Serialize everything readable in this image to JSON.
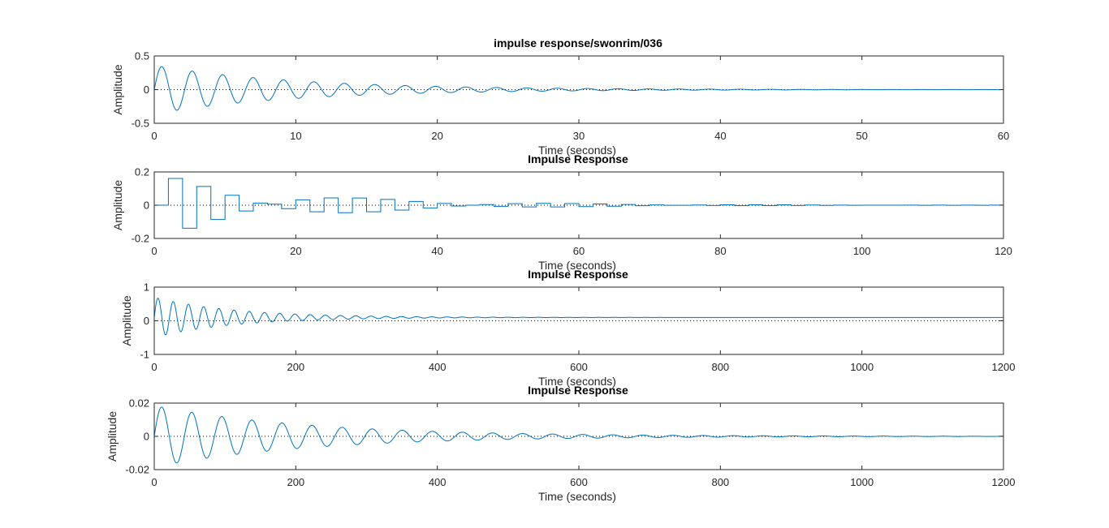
{
  "colors": {
    "line": "#0072BD",
    "axis": "#262626",
    "zero": "#000000"
  },
  "chart_data": [
    {
      "type": "line",
      "title": "impulse response/swonrim/036",
      "xlabel": "Time (seconds)",
      "ylabel": "Amplitude",
      "xlim": [
        0,
        60
      ],
      "ylim": [
        -0.5,
        0.5
      ],
      "xticks": [
        0,
        10,
        20,
        30,
        40,
        50,
        60
      ],
      "xtick_labels": [
        "0",
        "10",
        "20",
        "30",
        "40",
        "50",
        "60"
      ],
      "yticks": [
        -0.5,
        0,
        0.5
      ],
      "ytick_labels": [
        "-0.5",
        "0",
        "0.5"
      ],
      "grid": false,
      "zero_line": "dotted",
      "series": [
        {
          "style": "continuous",
          "amplitude": 0.36,
          "decay": 0.1,
          "period": 2.15,
          "offset": 0,
          "t_end": 60
        }
      ]
    },
    {
      "type": "line",
      "title": "Impulse Response",
      "xlabel": "Time (seconds)",
      "ylabel": "Amplitude",
      "xlim": [
        0,
        120
      ],
      "ylim": [
        -0.2,
        0.2
      ],
      "xticks": [
        0,
        20,
        40,
        60,
        80,
        100,
        120
      ],
      "xtick_labels": [
        "0",
        "20",
        "40",
        "60",
        "80",
        "100",
        "120"
      ],
      "yticks": [
        -0.2,
        0,
        0.2
      ],
      "ytick_labels": [
        "-0.2",
        "0",
        "0.2"
      ],
      "grid": false,
      "zero_line": "dotted",
      "series": [
        {
          "style": "stairs",
          "sample_time": 2,
          "delay": 2,
          "amplitude": 0.17,
          "decay": 0.05,
          "period": 4.3,
          "offset": 0,
          "t_end": 120
        }
      ]
    },
    {
      "type": "line",
      "title": "Impulse Response",
      "xlabel": "Time (seconds)",
      "ylabel": "Amplitude",
      "xlim": [
        0,
        1200
      ],
      "ylim": [
        -1,
        1
      ],
      "xticks": [
        0,
        200,
        400,
        600,
        800,
        1000,
        1200
      ],
      "xtick_labels": [
        "0",
        "200",
        "400",
        "600",
        "800",
        "1000",
        "1200"
      ],
      "yticks": [
        -1,
        0,
        1
      ],
      "ytick_labels": [
        "-1",
        "0",
        "1"
      ],
      "grid": false,
      "zero_line": "dotted",
      "series": [
        {
          "style": "continuous",
          "amplitude": 0.6,
          "decay": 0.009,
          "period": 21.5,
          "offset": 0.1,
          "t_end": 1200
        }
      ]
    },
    {
      "type": "line",
      "title": "Impulse Response",
      "xlabel": "Time (seconds)",
      "ylabel": "Amplitude",
      "xlim": [
        0,
        1200
      ],
      "ylim": [
        -0.02,
        0.02
      ],
      "xticks": [
        0,
        200,
        400,
        600,
        800,
        1000,
        1200
      ],
      "xtick_labels": [
        "0",
        "200",
        "400",
        "600",
        "800",
        "1000",
        "1200"
      ],
      "yticks": [
        -0.02,
        0,
        0.02
      ],
      "ytick_labels": [
        "-0.02",
        "0",
        "0.02"
      ],
      "grid": false,
      "zero_line": "dotted",
      "series": [
        {
          "style": "continuous",
          "amplitude": 0.0185,
          "decay": 0.0046,
          "period": 42.5,
          "offset": 0,
          "t_end": 1200
        }
      ]
    }
  ]
}
